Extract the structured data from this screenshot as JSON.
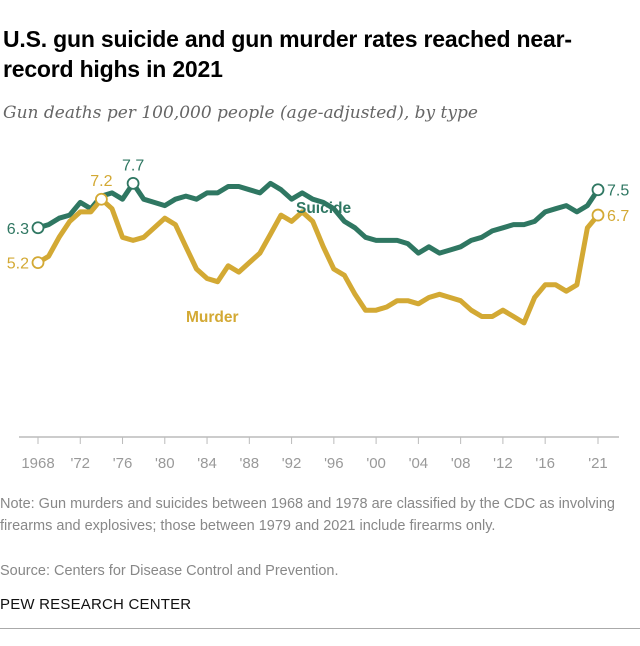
{
  "title": "U.S. gun suicide and gun murder rates reached near-record highs in 2021",
  "subtitle": "Gun deaths per 100,000 people (age-adjusted), by type",
  "note": "Note: Gun murders and suicides between 1968 and 1978 are classified by the CDC as involving firearms and explosives; those between 1979 and 2021 include firearms only.",
  "source": "Source: Centers for Disease Control and Prevention.",
  "brand": "PEW RESEARCH CENTER",
  "colors": {
    "suicide": "#2f7762",
    "murder": "#d3a934",
    "axis": "#bbbbbb",
    "tick_label": "#999999"
  },
  "chart_data": {
    "type": "line",
    "title": "U.S. gun suicide and gun murder rates reached near-record highs in 2021",
    "xlabel": "",
    "ylabel": "",
    "xlim": [
      1968,
      2021
    ],
    "ylim": [
      -0.3,
      8.8
    ],
    "grid": false,
    "legend": "inline labels",
    "x_ticks": [
      1968,
      1972,
      1976,
      1980,
      1984,
      1988,
      1992,
      1996,
      2000,
      2004,
      2008,
      2012,
      2016,
      2021
    ],
    "x_tick_labels": [
      "1968",
      "'72",
      "'76",
      "'80",
      "'84",
      "'88",
      "'92",
      "'96",
      "'00",
      "'04",
      "'08",
      "'12",
      "'16",
      "'21"
    ],
    "x": [
      1968,
      1969,
      1970,
      1971,
      1972,
      1973,
      1974,
      1975,
      1976,
      1977,
      1978,
      1979,
      1980,
      1981,
      1982,
      1983,
      1984,
      1985,
      1986,
      1987,
      1988,
      1989,
      1990,
      1991,
      1992,
      1993,
      1994,
      1995,
      1996,
      1997,
      1998,
      1999,
      2000,
      2001,
      2002,
      2003,
      2004,
      2005,
      2006,
      2007,
      2008,
      2009,
      2010,
      2011,
      2012,
      2013,
      2014,
      2015,
      2016,
      2017,
      2018,
      2019,
      2020,
      2021
    ],
    "series": [
      {
        "name": "Suicide",
        "color": "#2f7762",
        "values": [
          6.3,
          6.4,
          6.6,
          6.7,
          7.1,
          6.9,
          7.3,
          7.4,
          7.2,
          7.7,
          7.2,
          7.1,
          7.0,
          7.2,
          7.3,
          7.2,
          7.4,
          7.4,
          7.6,
          7.6,
          7.5,
          7.4,
          7.7,
          7.5,
          7.2,
          7.4,
          7.2,
          7.1,
          6.9,
          6.5,
          6.3,
          6.0,
          5.9,
          5.9,
          5.9,
          5.8,
          5.5,
          5.7,
          5.5,
          5.6,
          5.7,
          5.9,
          6.0,
          6.2,
          6.3,
          6.4,
          6.4,
          6.5,
          6.8,
          6.9,
          7.0,
          6.8,
          7.0,
          7.5
        ],
        "labels": [
          {
            "x": 1968,
            "text": "6.3"
          },
          {
            "x": 1977,
            "text": "7.7"
          },
          {
            "x": 2021,
            "text": "7.5"
          }
        ]
      },
      {
        "name": "Murder",
        "color": "#d3a934",
        "values": [
          5.2,
          5.4,
          6.0,
          6.5,
          6.8,
          6.8,
          7.2,
          6.9,
          6.0,
          5.9,
          6.0,
          6.3,
          6.6,
          6.4,
          5.7,
          5.0,
          4.7,
          4.6,
          5.1,
          4.9,
          5.2,
          5.5,
          6.1,
          6.7,
          6.5,
          6.8,
          6.5,
          5.7,
          5.0,
          4.8,
          4.2,
          3.7,
          3.7,
          3.8,
          4.0,
          4.0,
          3.9,
          4.1,
          4.2,
          4.1,
          4.0,
          3.7,
          3.5,
          3.5,
          3.7,
          3.5,
          3.3,
          4.1,
          4.5,
          4.5,
          4.3,
          4.5,
          6.3,
          6.7
        ],
        "labels": [
          {
            "x": 1968,
            "text": "5.2"
          },
          {
            "x": 1974,
            "text": "7.2"
          },
          {
            "x": 2021,
            "text": "6.7"
          }
        ]
      }
    ]
  }
}
